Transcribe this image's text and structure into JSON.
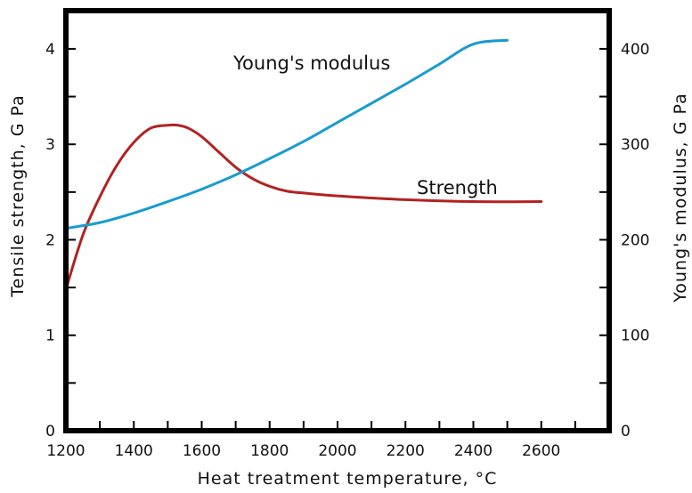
{
  "chart_data": {
    "type": "line",
    "title": "",
    "xlabel": "Heat treatment temperature, °C",
    "ylabel_left": "Tensile strength, G Pa",
    "ylabel_right": "Young's modulus, G Pa",
    "xlim": [
      1200,
      2800
    ],
    "ylim_left": [
      0,
      4.4
    ],
    "ylim_right": [
      0,
      440
    ],
    "x_ticks": [
      1200,
      1400,
      1600,
      1800,
      2000,
      2200,
      2400,
      2600
    ],
    "y_ticks_left": [
      0,
      1,
      2,
      3,
      4
    ],
    "y_ticks_right": [
      0,
      100,
      200,
      300,
      400
    ],
    "grid": false,
    "series": [
      {
        "name": "Strength",
        "axis": "left",
        "color": "#b22222",
        "x": [
          1200,
          1250,
          1300,
          1350,
          1400,
          1450,
          1500,
          1530,
          1560,
          1600,
          1650,
          1700,
          1750,
          1800,
          1850,
          1900,
          2000,
          2200,
          2400,
          2600
        ],
        "y": [
          1.48,
          2.05,
          2.45,
          2.78,
          3.02,
          3.17,
          3.2,
          3.2,
          3.17,
          3.08,
          2.92,
          2.76,
          2.64,
          2.56,
          2.51,
          2.49,
          2.46,
          2.42,
          2.4,
          2.4
        ]
      },
      {
        "name": "Young's modulus",
        "axis": "right",
        "color": "#1a9bcf",
        "x": [
          1200,
          1300,
          1400,
          1500,
          1600,
          1700,
          1800,
          1900,
          2000,
          2100,
          2200,
          2300,
          2400,
          2500
        ],
        "y": [
          212,
          218,
          228,
          240,
          253,
          268,
          285,
          303,
          323,
          343,
          363,
          384,
          405,
          409
        ]
      }
    ]
  }
}
